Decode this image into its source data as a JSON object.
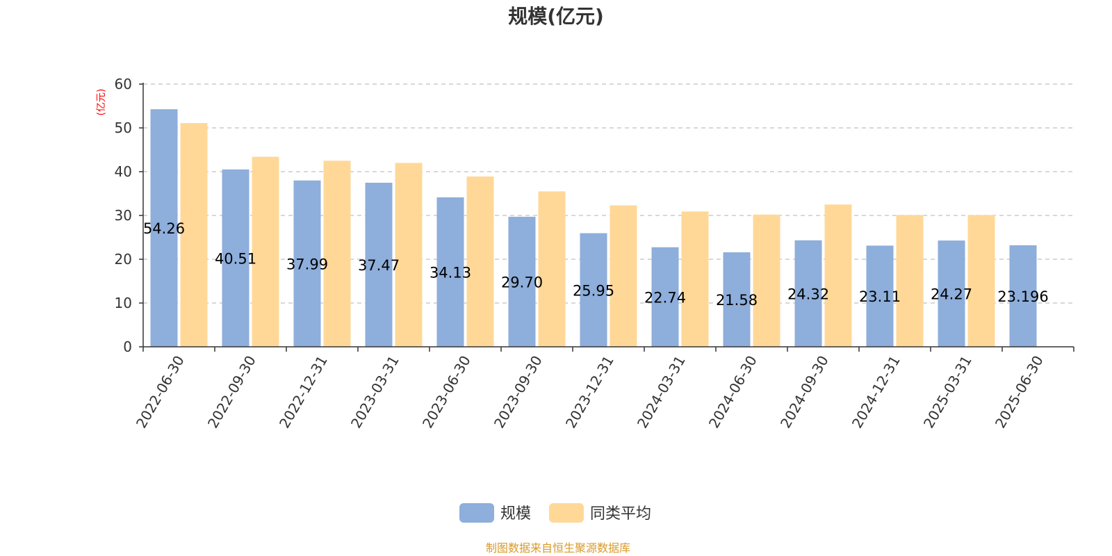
{
  "chart_data": {
    "type": "bar",
    "title": "规模(亿元)",
    "ylabel": "(亿元)",
    "ylim": [
      0,
      60
    ],
    "yticks": [
      0,
      10,
      20,
      30,
      40,
      50,
      60
    ],
    "grid": true,
    "legend_position": "bottom",
    "categories": [
      "2022-06-30",
      "2022-09-30",
      "2022-12-31",
      "2023-03-31",
      "2023-06-30",
      "2023-09-30",
      "2023-12-31",
      "2024-03-31",
      "2024-06-30",
      "2024-09-30",
      "2024-12-31",
      "2025-03-31",
      "2025-06-30"
    ],
    "series": [
      {
        "name": "规模",
        "color": "#8EAEDB",
        "values": [
          54.26,
          40.51,
          37.99,
          37.47,
          34.13,
          29.7,
          25.95,
          22.74,
          21.58,
          24.32,
          23.11,
          24.27,
          23.196
        ],
        "labels": [
          "54.26",
          "40.51",
          "37.99",
          "37.47",
          "34.13",
          "29.70",
          "25.95",
          "22.74",
          "21.58",
          "24.32",
          "23.11",
          "24.27",
          "23.196"
        ]
      },
      {
        "name": "同类平均",
        "color": "#FFD898",
        "values": [
          51.1,
          43.4,
          42.5,
          42.0,
          38.9,
          35.5,
          32.3,
          30.9,
          30.2,
          32.5,
          30.1,
          30.1,
          null
        ]
      }
    ]
  },
  "colors": {
    "ylabel": "#FF0000",
    "source": "#D89A2A",
    "grid": "#CCCCCC",
    "axis": "#333333"
  },
  "source_text": "制图数据来自恒生聚源数据库"
}
